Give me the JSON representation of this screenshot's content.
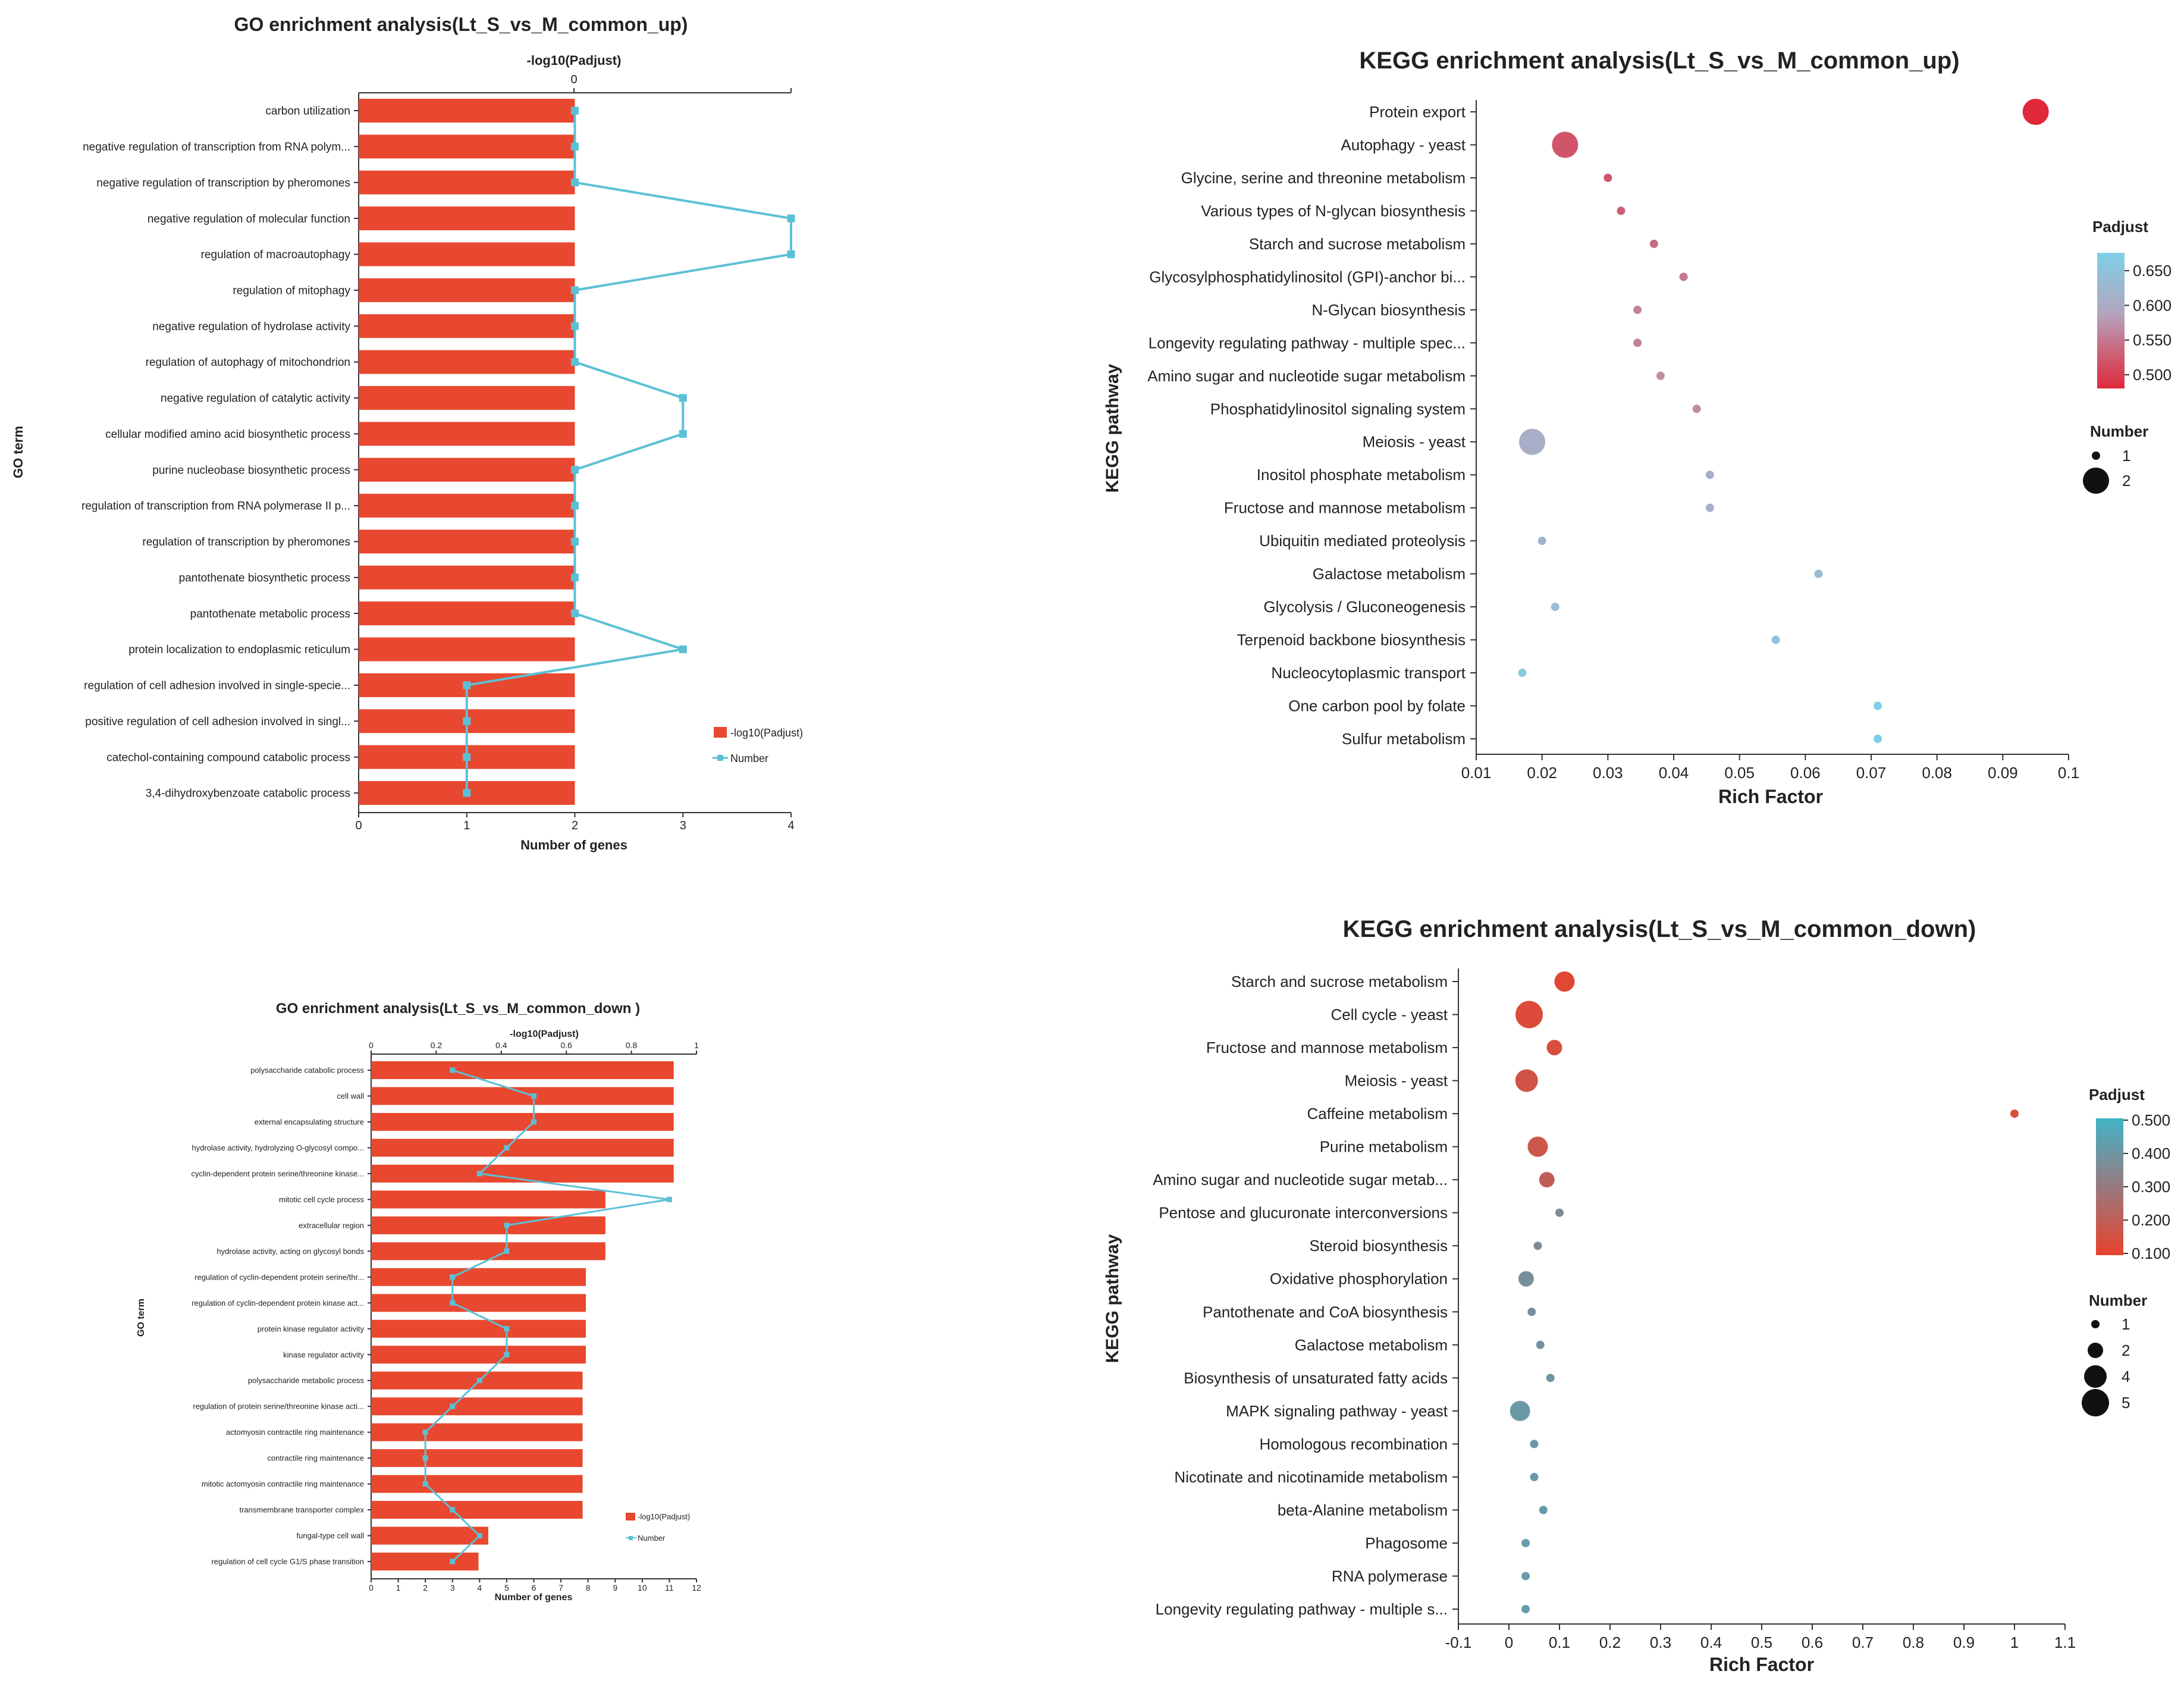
{
  "chart_data": [
    {
      "type": "bar",
      "title": "GO enrichment analysis(Lt_S_vs_M_common_up)",
      "xlabel": "Number of genes",
      "x2label": "-log10(Padjust)",
      "ylabel": "GO term",
      "xlim": [
        0,
        4
      ],
      "xticks": [
        "0",
        "1",
        "2",
        "3",
        "4"
      ],
      "x2ticks": [
        "0"
      ],
      "categories": [
        "carbon utilization",
        "negative regulation of transcription from RNA polym...",
        "negative regulation of transcription by pheromones",
        "negative regulation of molecular function",
        "regulation of macroautophagy",
        "regulation of mitophagy",
        "negative regulation of hydrolase activity",
        "regulation of autophagy of mitochondrion",
        "negative regulation of catalytic activity",
        "cellular modified amino acid biosynthetic process",
        "purine nucleobase biosynthetic process",
        "regulation of transcription from RNA polymerase II p...",
        "regulation of transcription by pheromones",
        "pantothenate biosynthetic process",
        "pantothenate metabolic process",
        "protein localization to endoplasmic reticulum",
        "regulation of cell adhesion involved in single-specie...",
        "positive regulation of cell adhesion involved in singl...",
        "catechol-containing compound catabolic process",
        "3,4-dihydroxybenzoate catabolic process"
      ],
      "series": [
        {
          "name": "-log10(Padjust)",
          "kind": "bar",
          "color": "#e8482f",
          "values": [
            2,
            2,
            2,
            2,
            2,
            2,
            2,
            2,
            2,
            2,
            2,
            2,
            2,
            2,
            2,
            2,
            2,
            2,
            2,
            2
          ]
        },
        {
          "name": "Number",
          "kind": "line",
          "color": "#5bc0d6",
          "values": [
            2,
            2,
            2,
            4,
            4,
            2,
            2,
            2,
            3,
            3,
            2,
            2,
            2,
            2,
            2,
            3,
            1,
            1,
            1,
            1
          ]
        }
      ],
      "legend_position": "bottom-right"
    },
    {
      "type": "scatter",
      "title": "KEGG enrichment analysis(Lt_S_vs_M_common_up)",
      "xlabel": "Rich Factor",
      "ylabel": "KEGG pathway",
      "xlim": [
        0.01,
        0.1
      ],
      "xticks": [
        "0.01",
        "0.02",
        "0.03",
        "0.04",
        "0.05",
        "0.06",
        "0.07",
        "0.08",
        "0.09",
        "0.1"
      ],
      "categories": [
        "Protein export",
        "Autophagy - yeast",
        "Glycine, serine and threonine metabolism",
        "Various types of N-glycan biosynthesis",
        "Starch and sucrose metabolism",
        "Glycosylphosphatidylinositol (GPI)-anchor bi...",
        "N-Glycan biosynthesis",
        "Longevity regulating pathway - multiple spec...",
        "Amino sugar and nucleotide sugar metabolism",
        "Phosphatidylinositol signaling system",
        "Meiosis - yeast",
        "Inositol phosphate metabolism",
        "Fructose and mannose metabolism",
        "Ubiquitin mediated proteolysis",
        "Galactose metabolism",
        "Glycolysis / Gluconeogenesis",
        "Terpenoid backbone biosynthesis",
        "Nucleocytoplasmic transport",
        "One carbon pool by folate",
        "Sulfur metabolism"
      ],
      "x": [
        0.095,
        0.0235,
        0.03,
        0.032,
        0.037,
        0.0415,
        0.0345,
        0.0345,
        0.038,
        0.0435,
        0.0185,
        0.0455,
        0.0455,
        0.02,
        0.062,
        0.022,
        0.0555,
        0.017,
        0.071,
        0.071
      ],
      "padjust": [
        0.48,
        0.52,
        0.52,
        0.53,
        0.54,
        0.55,
        0.56,
        0.56,
        0.57,
        0.57,
        0.61,
        0.615,
        0.615,
        0.625,
        0.635,
        0.64,
        0.655,
        0.67,
        0.68,
        0.68
      ],
      "number": [
        2,
        2,
        1,
        1,
        1,
        1,
        1,
        1,
        1,
        1,
        2,
        1,
        1,
        1,
        1,
        1,
        1,
        1,
        1,
        1
      ],
      "color_legend": {
        "title": "Padjust",
        "ticks": [
          "0.650",
          "0.600",
          "0.550",
          "0.500"
        ],
        "min": 0.48,
        "max": 0.68,
        "low_color": "#e0283a",
        "high_color": "#7fcfe8"
      },
      "size_legend": {
        "title": "Number",
        "labels": [
          "1",
          "2"
        ]
      },
      "legend_position": "right"
    },
    {
      "type": "bar",
      "title": "GO enrichment analysis(Lt_S_vs_M_common_down )",
      "xlabel": "Number of genes",
      "x2label": "-log10(Padjust)",
      "ylabel": "GO term",
      "xlim": [
        0,
        12
      ],
      "x2lim": [
        0,
        1
      ],
      "xticks": [
        "0",
        "1",
        "2",
        "3",
        "4",
        "5",
        "6",
        "7",
        "8",
        "9",
        "10",
        "11",
        "12"
      ],
      "x2ticks": [
        "0",
        "0.2",
        "0.4",
        "0.6",
        "0.8",
        "1"
      ],
      "categories": [
        "polysaccharide catabolic process",
        "cell wall",
        "external encapsulating structure",
        "hydrolase activity, hydrolyzing O-glycosyl compo...",
        "cyclin-dependent protein serine/threonine kinase...",
        "mitotic cell cycle process",
        "extracellular region",
        "hydrolase activity, acting on glycosyl bonds",
        "regulation of cyclin-dependent protein serine/thr...",
        "regulation of cyclin-dependent protein kinase act...",
        "protein kinase regulator activity",
        "kinase regulator activity",
        "polysaccharide metabolic process",
        "regulation of protein serine/threonine kinase acti...",
        "actomyosin contractile ring maintenance",
        "contractile ring maintenance",
        "mitotic actomyosin contractile ring maintenance",
        "transmembrane transporter complex",
        "fungal-type cell wall",
        "regulation of cell cycle G1/S phase transition"
      ],
      "series": [
        {
          "name": "-log10(Padjust)",
          "kind": "bar",
          "color": "#e8482f",
          "values": [
            0.93,
            0.93,
            0.93,
            0.93,
            0.93,
            0.72,
            0.72,
            0.72,
            0.66,
            0.66,
            0.66,
            0.66,
            0.65,
            0.65,
            0.65,
            0.65,
            0.65,
            0.65,
            0.36,
            0.33
          ]
        },
        {
          "name": "Number",
          "kind": "line",
          "color": "#5bc0d6",
          "values": [
            3,
            6,
            6,
            5,
            4,
            11,
            5,
            5,
            3,
            3,
            5,
            5,
            4,
            3,
            2,
            2,
            2,
            3,
            4,
            3
          ]
        }
      ],
      "legend_position": "bottom-right"
    },
    {
      "type": "scatter",
      "title": "KEGG enrichment analysis(Lt_S_vs_M_common_down)",
      "xlabel": "Rich Factor",
      "ylabel": "KEGG pathway",
      "xlim": [
        -0.1,
        1.1
      ],
      "xticks": [
        "-0.1",
        "0",
        "0.1",
        "0.2",
        "0.3",
        "0.4",
        "0.5",
        "0.6",
        "0.7",
        "0.8",
        "0.9",
        "1",
        "1.1"
      ],
      "categories": [
        "Starch and sucrose metabolism",
        "Cell cycle - yeast",
        "Fructose and mannose metabolism",
        "Meiosis - yeast",
        "Caffeine metabolism",
        "Purine metabolism",
        "Amino sugar and nucleotide sugar metab...",
        "Pentose and glucuronate interconversions",
        "Steroid biosynthesis",
        "Oxidative phosphorylation",
        "Pantothenate and CoA biosynthesis",
        "Galactose metabolism",
        "Biosynthesis of unsaturated fatty acids",
        "MAPK signaling pathway - yeast",
        "Homologous recombination",
        "Nicotinate and nicotinamide metabolism",
        "beta-Alanine metabolism",
        "Phagosome",
        "RNA polymerase",
        "Longevity regulating pathway - multiple s..."
      ],
      "x": [
        0.11,
        0.04,
        0.09,
        0.035,
        1.0,
        0.057,
        0.075,
        0.1,
        0.057,
        0.034,
        0.045,
        0.062,
        0.082,
        0.022,
        0.05,
        0.05,
        0.068,
        0.033,
        0.033,
        0.033
      ],
      "padjust": [
        0.12,
        0.13,
        0.14,
        0.16,
        0.14,
        0.17,
        0.2,
        0.36,
        0.37,
        0.38,
        0.38,
        0.39,
        0.39,
        0.41,
        0.41,
        0.41,
        0.42,
        0.42,
        0.42,
        0.42
      ],
      "number": [
        3,
        5,
        2,
        4,
        1,
        3,
        2,
        1,
        1,
        2,
        1,
        1,
        1,
        3,
        1,
        1,
        1,
        1,
        1,
        1
      ],
      "color_legend": {
        "title": "Padjust",
        "ticks": [
          "0.500",
          "0.400",
          "0.300",
          "0.200",
          "0.100"
        ],
        "min": 0.1,
        "max": 0.5,
        "low_color": "#e8432d",
        "high_color": "#41b3c6"
      },
      "size_legend": {
        "title": "Number",
        "labels": [
          "1",
          "2",
          "4",
          "5"
        ]
      },
      "legend_position": "right"
    }
  ]
}
